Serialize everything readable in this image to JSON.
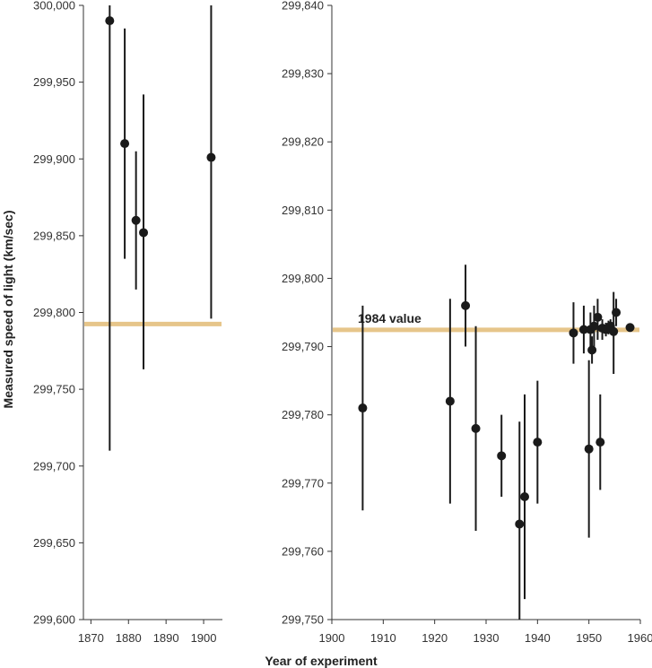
{
  "chart_data": {
    "type": "scatter",
    "xlabel": "Year of experiment",
    "ylabel": "Measured speed of light (km/sec)",
    "reference_line": {
      "label": "1984 value",
      "value": 299792.458,
      "color": "#e6c58a"
    },
    "marker_color": "#1a1a1a",
    "panels": [
      {
        "name": "left",
        "xlim": [
          1868,
          1905
        ],
        "ylim": [
          299600,
          300000
        ],
        "x_ticks": [
          1870,
          1880,
          1890,
          1900
        ],
        "x_tick_labels": [
          "1870",
          "1880",
          "1890",
          "1900"
        ],
        "y_ticks": [
          299600,
          299650,
          299700,
          299750,
          299800,
          299850,
          299900,
          299950,
          300000
        ],
        "y_tick_labels": [
          "299,600",
          "299,650",
          "299,700",
          "299,750",
          "299,800",
          "299,850",
          "299,900",
          "299,950",
          "300,000"
        ],
        "show_ref_label": false,
        "points": [
          {
            "x": 1875,
            "y": 299990,
            "lo": 299710,
            "hi": 300000
          },
          {
            "x": 1879,
            "y": 299910,
            "lo": 299835,
            "hi": 299985
          },
          {
            "x": 1882,
            "y": 299860,
            "lo": 299815,
            "hi": 299905
          },
          {
            "x": 1884,
            "y": 299852,
            "lo": 299763,
            "hi": 299942
          },
          {
            "x": 1902,
            "y": 299901,
            "lo": 299796,
            "hi": 300000
          }
        ]
      },
      {
        "name": "right",
        "xlim": [
          1900,
          1960
        ],
        "ylim": [
          299750,
          299840
        ],
        "x_ticks": [
          1900,
          1910,
          1920,
          1930,
          1940,
          1950,
          1960
        ],
        "x_tick_labels": [
          "1900",
          "1910",
          "1920",
          "1930",
          "1940",
          "1950",
          "1960"
        ],
        "y_ticks": [
          299750,
          299760,
          299770,
          299780,
          299790,
          299800,
          299810,
          299820,
          299830,
          299840
        ],
        "y_tick_labels": [
          "299,750",
          "299,760",
          "299,770",
          "299,780",
          "299,790",
          "299,800",
          "299,810",
          "299,820",
          "299,830",
          "299,840"
        ],
        "show_ref_label": true,
        "points": [
          {
            "x": 1906,
            "y": 299781,
            "lo": 299766,
            "hi": 299796
          },
          {
            "x": 1923,
            "y": 299782,
            "lo": 299767,
            "hi": 299797
          },
          {
            "x": 1926,
            "y": 299796,
            "lo": 299790,
            "hi": 299802
          },
          {
            "x": 1928,
            "y": 299778,
            "lo": 299763,
            "hi": 299793
          },
          {
            "x": 1933,
            "y": 299774,
            "lo": 299768,
            "hi": 299780
          },
          {
            "x": 1936.5,
            "y": 299764,
            "lo": 299748,
            "hi": 299779
          },
          {
            "x": 1937.5,
            "y": 299768,
            "lo": 299753,
            "hi": 299783
          },
          {
            "x": 1940,
            "y": 299776,
            "lo": 299767,
            "hi": 299785
          },
          {
            "x": 1947,
            "y": 299792,
            "lo": 299787.5,
            "hi": 299796.5
          },
          {
            "x": 1949,
            "y": 299792.5,
            "lo": 299789,
            "hi": 299796
          },
          {
            "x": 1950,
            "y": 299775,
            "lo": 299762,
            "hi": 299788
          },
          {
            "x": 1950.3,
            "y": 299792.5,
            "lo": 299790,
            "hi": 299795
          },
          {
            "x": 1950.6,
            "y": 299789.5,
            "lo": 299787.5,
            "hi": 299791.5
          },
          {
            "x": 1951,
            "y": 299793,
            "lo": 299790,
            "hi": 299796
          },
          {
            "x": 1951.7,
            "y": 299794.3,
            "lo": 299791,
            "hi": 299797
          },
          {
            "x": 1952.2,
            "y": 299776,
            "lo": 299769,
            "hi": 299783
          },
          {
            "x": 1952.6,
            "y": 299792.7,
            "lo": 299791,
            "hi": 299794
          },
          {
            "x": 1953.3,
            "y": 299792.5,
            "lo": 299791.5,
            "hi": 299793.5
          },
          {
            "x": 1953.8,
            "y": 299792.8,
            "lo": 299791.8,
            "hi": 299793.8
          },
          {
            "x": 1954.2,
            "y": 299793,
            "lo": 299792,
            "hi": 299794
          },
          {
            "x": 1954.8,
            "y": 299792.2,
            "lo": 299786,
            "hi": 299798
          },
          {
            "x": 1955.3,
            "y": 299795,
            "lo": 299793,
            "hi": 299797
          },
          {
            "x": 1958,
            "y": 299792.8,
            "lo": 299792.3,
            "hi": 299793.3
          }
        ]
      }
    ]
  }
}
